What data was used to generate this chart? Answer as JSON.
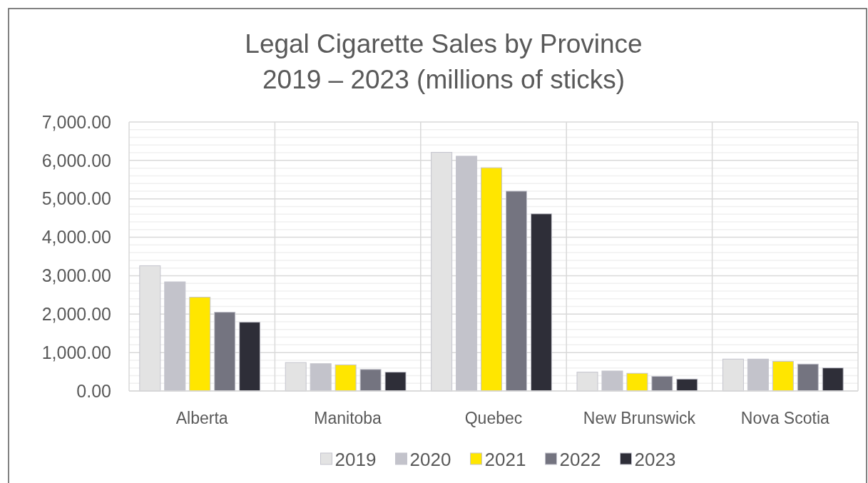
{
  "chart_data": {
    "type": "bar",
    "title": "Legal Cigarette Sales by Province\n2019 – 2023 (millions of sticks)",
    "categories": [
      "Alberta",
      "Manitoba",
      "Quebec",
      "New Brunswick",
      "Nova Scotia"
    ],
    "series": [
      {
        "name": "2019",
        "color": "#e3e3e3",
        "values": [
          3260,
          740,
          6210,
          490,
          830
        ]
      },
      {
        "name": "2020",
        "color": "#c3c3cb",
        "values": [
          2840,
          710,
          6110,
          520,
          830
        ]
      },
      {
        "name": "2021",
        "color": "#ffe600",
        "values": [
          2440,
          680,
          5810,
          460,
          770
        ]
      },
      {
        "name": "2022",
        "color": "#747480",
        "values": [
          2050,
          560,
          5200,
          380,
          700
        ]
      },
      {
        "name": "2023",
        "color": "#2e2e38",
        "values": [
          1790,
          490,
          4610,
          310,
          600
        ]
      }
    ],
    "ylim": [
      0,
      7000
    ],
    "yticks": [
      {
        "value": 0,
        "label": "0.00"
      },
      {
        "value": 1000,
        "label": "1,000.00"
      },
      {
        "value": 2000,
        "label": "2,000.00"
      },
      {
        "value": 3000,
        "label": "3,000.00"
      },
      {
        "value": 4000,
        "label": "4,000.00"
      },
      {
        "value": 5000,
        "label": "5,000.00"
      },
      {
        "value": 6000,
        "label": "6,000.00"
      },
      {
        "value": 7000,
        "label": "7,000.00"
      }
    ],
    "grid": true,
    "legend": "bottom"
  }
}
